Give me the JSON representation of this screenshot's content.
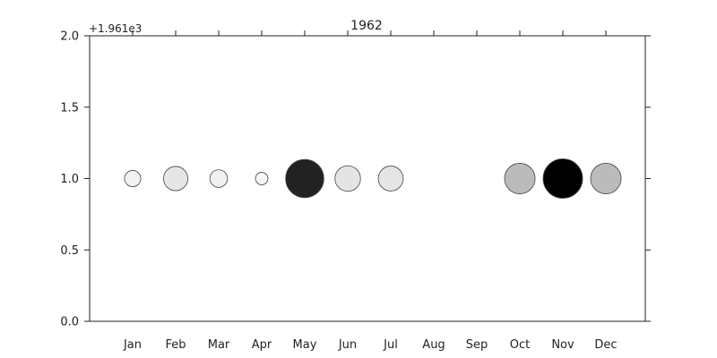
{
  "chart_data": {
    "type": "scatter",
    "title": "1962",
    "offset_label": "+1.961e3",
    "xlabel": "",
    "ylabel": "",
    "categories": [
      "Jan",
      "Feb",
      "Mar",
      "Apr",
      "May",
      "Jun",
      "Jul",
      "Aug",
      "Sep",
      "Oct",
      "Nov",
      "Dec"
    ],
    "ylim": [
      0.0,
      2.0
    ],
    "yticks": [
      "0.0",
      "0.5",
      "1.0",
      "1.5",
      "2.0"
    ],
    "grid": false,
    "legend": "none",
    "points": [
      {
        "category": "Jan",
        "y": 1.0,
        "size": 0.17,
        "color": "#f2f2f2"
      },
      {
        "category": "Feb",
        "y": 1.0,
        "size": 0.38,
        "color": "#e6e6e6"
      },
      {
        "category": "Mar",
        "y": 1.0,
        "size": 0.2,
        "color": "#f0f0f0"
      },
      {
        "category": "Apr",
        "y": 1.0,
        "size": 0.1,
        "color": "#f5f5f5"
      },
      {
        "category": "May",
        "y": 1.0,
        "size": 0.94,
        "color": "#222222"
      },
      {
        "category": "Jun",
        "y": 1.0,
        "size": 0.42,
        "color": "#e4e4e4"
      },
      {
        "category": "Jul",
        "y": 1.0,
        "size": 0.4,
        "color": "#e5e5e5"
      },
      {
        "category": "Oct",
        "y": 1.0,
        "size": 0.6,
        "color": "#bbbbbb"
      },
      {
        "category": "Nov",
        "y": 1.0,
        "size": 1.0,
        "color": "#000000"
      },
      {
        "category": "Dec",
        "y": 1.0,
        "size": 0.6,
        "color": "#bbbbbb"
      }
    ]
  }
}
